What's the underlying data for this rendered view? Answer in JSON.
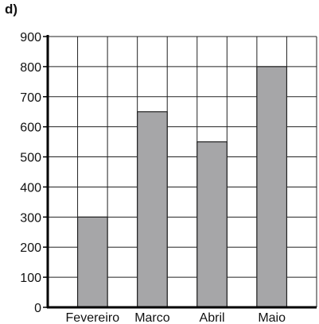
{
  "panel_label": "d)",
  "chart_data": {
    "type": "bar",
    "categories": [
      "Fevereiro",
      "Marco",
      "Abril",
      "Maio"
    ],
    "values": [
      300,
      650,
      550,
      800
    ],
    "ylim": [
      0,
      900
    ],
    "yticks": [
      0,
      100,
      200,
      300,
      400,
      500,
      600,
      700,
      800,
      900
    ],
    "grid": true,
    "bar_color": "#a6a6a8",
    "title": "",
    "xlabel": "",
    "ylabel": ""
  }
}
